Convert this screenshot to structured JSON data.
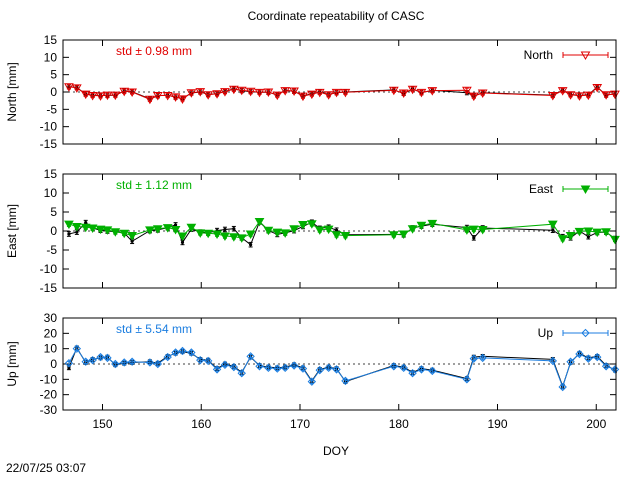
{
  "chart_data": {
    "type": "line",
    "title": "Coordinate repeatability of CASC",
    "xlabel": "DOY",
    "xlim": [
      146,
      202
    ],
    "xticks": [
      150,
      160,
      170,
      180,
      190,
      200
    ],
    "timestamp": "22/07/25 03:07",
    "grid": false,
    "panels": [
      {
        "name": "North",
        "ylabel": "North [mm]",
        "ylim": [
          -15,
          15
        ],
        "yticks": [
          15,
          10,
          5,
          0,
          -5,
          -10,
          -15
        ],
        "std_text": "std ± 0.98 mm",
        "legend": "North",
        "color": "#e00000",
        "marker": "triangle-down-open",
        "series": [
          {
            "x": [
              146.6,
              147.4,
              148.3,
              149.0,
              149.8,
              150.5,
              151.3,
              152.2,
              153.0,
              154.8,
              155.6,
              156.6,
              157.4,
              158.1,
              159.0,
              159.9,
              160.7,
              161.6,
              162.4,
              163.3,
              164.1,
              165.0,
              165.9,
              166.8,
              167.7,
              168.5,
              169.4,
              170.3,
              171.2,
              172.0,
              172.9,
              173.7,
              174.6,
              179.5,
              180.5,
              181.4,
              182.3,
              183.4,
              186.9,
              187.6,
              188.5,
              195.6,
              196.6,
              197.4,
              198.3,
              199.2,
              200.1,
              201.0,
              201.9
            ],
            "y": [
              1.5,
              1.2,
              -0.6,
              -1.0,
              -1.1,
              -0.9,
              -0.9,
              0.2,
              0.0,
              -2.1,
              -1.0,
              -1.0,
              -1.4,
              -2.0,
              -0.2,
              0.1,
              -0.8,
              -0.5,
              0.1,
              0.8,
              0.5,
              0.2,
              -0.1,
              0.0,
              -0.9,
              0.4,
              0.3,
              -1.2,
              -0.6,
              -0.1,
              -0.8,
              -0.1,
              -0.1,
              0.5,
              -0.3,
              0.8,
              -0.1,
              0.4,
              0.5,
              -1.2,
              -0.3,
              -1.0,
              0.4,
              -0.8,
              -1.1,
              -0.9,
              1.3,
              -0.8,
              -0.6
            ]
          },
          {
            "x": [
              146.6,
              147.4,
              148.3,
              149.0,
              149.8,
              150.5,
              151.3,
              152.2,
              153.0,
              154.8,
              155.6,
              156.6,
              157.4,
              158.1,
              159.0,
              159.9,
              160.7,
              161.6,
              162.4,
              163.3,
              164.1,
              165.0,
              165.9,
              166.8,
              167.7,
              168.5,
              169.4,
              170.3,
              171.2,
              172.0,
              172.9,
              173.7,
              174.6,
              179.5,
              180.5,
              181.4,
              182.3,
              183.4,
              186.9,
              187.6,
              188.5,
              195.6,
              196.6,
              197.4,
              198.3,
              199.2,
              200.1,
              201.0,
              201.9
            ],
            "y": [
              1.5,
              1.3,
              -0.6,
              -0.9,
              -1.0,
              -1.0,
              -0.9,
              0.3,
              0.1,
              -2.0,
              -1.1,
              -0.9,
              -1.5,
              -1.9,
              -0.3,
              0.0,
              -0.7,
              -0.5,
              0.2,
              0.9,
              0.4,
              0.1,
              -0.1,
              -0.1,
              -0.8,
              0.5,
              0.2,
              -1.1,
              -0.5,
              0.0,
              -0.7,
              -0.2,
              0.0,
              0.6,
              -0.4,
              0.9,
              -0.2,
              0.5,
              -0.2,
              -1.1,
              -0.2,
              -0.9,
              0.5,
              -0.7,
              -1.0,
              -0.8,
              1.4,
              -0.9,
              -0.5
            ]
          }
        ]
      },
      {
        "name": "East",
        "ylabel": "East [mm]",
        "ylim": [
          -15,
          15
        ],
        "yticks": [
          15,
          10,
          5,
          0,
          -5,
          -10,
          -15
        ],
        "std_text": "std ± 1.12 mm",
        "legend": "East",
        "color": "#00b000",
        "marker": "triangle-down-filled",
        "series": [
          {
            "x": [
              146.6,
              147.4,
              148.3,
              149.0,
              149.8,
              150.5,
              151.3,
              152.2,
              153.0,
              154.8,
              155.6,
              156.6,
              157.4,
              158.1,
              159.0,
              159.9,
              160.7,
              161.6,
              162.4,
              163.3,
              164.1,
              165.0,
              165.9,
              166.8,
              167.7,
              168.5,
              169.4,
              170.3,
              171.2,
              172.0,
              172.9,
              173.7,
              174.6,
              179.5,
              180.5,
              181.4,
              182.3,
              183.4,
              186.9,
              187.6,
              188.5,
              195.6,
              196.6,
              197.4,
              198.3,
              199.2,
              200.1,
              201.0,
              201.9
            ],
            "y": [
              1.8,
              1.2,
              1.0,
              0.8,
              0.5,
              0.3,
              -0.2,
              -0.6,
              -1.2,
              0.3,
              0.6,
              0.9,
              0.4,
              -1.3,
              1.0,
              -0.5,
              -0.6,
              -0.8,
              -1.3,
              -1.5,
              -1.8,
              -0.8,
              2.5,
              0.2,
              -0.3,
              -0.5,
              0.6,
              1.7,
              1.9,
              0.3,
              0.5,
              -1.0,
              -1.2,
              -1.0,
              -0.8,
              0.6,
              1.5,
              2.0,
              0.3,
              0.5,
              0.4,
              1.8,
              -2.0,
              -1.2,
              -0.1,
              0.0,
              -0.3,
              -0.2,
              -2.2
            ]
          },
          {
            "x": [
              146.6,
              147.4,
              148.3,
              149.0,
              149.8,
              150.5,
              151.3,
              152.2,
              153.0,
              154.8,
              155.6,
              156.6,
              157.4,
              158.1,
              159.0,
              159.9,
              160.7,
              161.6,
              162.4,
              163.3,
              164.1,
              165.0,
              165.9,
              166.8,
              167.7,
              168.5,
              169.4,
              170.3,
              171.2,
              172.0,
              172.9,
              173.7,
              174.6,
              179.5,
              180.5,
              181.4,
              182.3,
              183.4,
              186.9,
              187.6,
              188.5,
              195.6,
              196.6,
              197.4,
              198.3,
              199.2,
              200.1,
              201.0,
              201.9
            ],
            "y": [
              -0.8,
              -0.3,
              2.2,
              0.8,
              0.2,
              0.0,
              -0.2,
              -0.5,
              -2.7,
              0.1,
              0.3,
              0.9,
              1.6,
              -3.0,
              0.5,
              -0.3,
              -0.5,
              0.1,
              0.4,
              0.6,
              -1.8,
              -3.6,
              2.4,
              0.1,
              -0.9,
              -0.5,
              0.1,
              1.2,
              2.3,
              0.7,
              1.0,
              0.2,
              -1.0,
              -0.9,
              -1.0,
              0.8,
              1.3,
              1.8,
              0.9,
              -1.8,
              0.8,
              0.2,
              -1.5,
              -1.8,
              0.0,
              -1.5,
              -0.4,
              -0.3,
              -2.0
            ]
          }
        ]
      },
      {
        "name": "Up",
        "ylabel": "Up [mm]",
        "ylim": [
          -30,
          30
        ],
        "yticks": [
          30,
          20,
          10,
          0,
          -10,
          -20,
          -30
        ],
        "std_text": "std ± 5.54 mm",
        "legend": "Up",
        "color": "#1c7ee0",
        "marker": "diamond-open",
        "series": [
          {
            "x": [
              146.6,
              147.4,
              148.3,
              149.0,
              149.8,
              150.5,
              151.3,
              152.2,
              153.0,
              154.8,
              155.6,
              156.6,
              157.4,
              158.1,
              159.0,
              159.9,
              160.7,
              161.6,
              162.4,
              163.3,
              164.1,
              165.0,
              165.9,
              166.8,
              167.7,
              168.5,
              169.4,
              170.3,
              171.2,
              172.0,
              172.9,
              173.7,
              174.6,
              179.5,
              180.5,
              181.4,
              182.3,
              183.4,
              186.9,
              187.6,
              188.5,
              195.6,
              196.6,
              197.4,
              198.3,
              199.2,
              200.1,
              201.0,
              201.9
            ],
            "y": [
              0.5,
              10.0,
              1.5,
              2.5,
              4.5,
              4.0,
              0.0,
              1.0,
              1.5,
              1.0,
              0.0,
              4.5,
              7.5,
              8.5,
              7.5,
              2.5,
              2.0,
              -3.5,
              -0.5,
              -2.0,
              -6.0,
              5.0,
              -1.5,
              -2.5,
              -3.0,
              -2.5,
              -1.0,
              -3.0,
              -11.5,
              -4.0,
              -2.5,
              -3.5,
              -11.0,
              -1.5,
              -2.5,
              -6.0,
              -3.5,
              -4.5,
              -10.0,
              3.5,
              4.0,
              2.0,
              -15.0,
              1.5,
              6.5,
              3.5,
              4.5,
              -1.5,
              -3.5
            ]
          },
          {
            "x": [
              146.6,
              147.4,
              148.3,
              149.0,
              149.8,
              150.5,
              151.3,
              152.2,
              153.0,
              154.8,
              155.6,
              156.6,
              157.4,
              158.1,
              159.0,
              159.9,
              160.7,
              161.6,
              162.4,
              163.3,
              164.1,
              165.0,
              165.9,
              166.8,
              167.7,
              168.5,
              169.4,
              170.3,
              171.2,
              172.0,
              172.9,
              173.7,
              174.6,
              179.5,
              180.5,
              181.4,
              182.3,
              183.4,
              186.9,
              187.6,
              188.5,
              195.6,
              196.6,
              197.4,
              198.3,
              199.2,
              200.1,
              201.0,
              201.9
            ],
            "y": [
              -2.5,
              10.5,
              1.0,
              3.0,
              4.0,
              4.5,
              -0.5,
              0.5,
              1.0,
              1.5,
              0.5,
              5.0,
              7.0,
              8.0,
              7.0,
              3.0,
              2.5,
              -3.0,
              0.0,
              -1.5,
              -5.5,
              4.5,
              -1.0,
              -2.0,
              -2.5,
              -2.0,
              -0.5,
              -2.5,
              -11.0,
              -3.5,
              -2.0,
              -3.0,
              -11.5,
              -1.0,
              -2.0,
              -5.5,
              -3.0,
              -4.0,
              -9.5,
              4.5,
              5.0,
              3.0,
              -14.5,
              1.0,
              7.0,
              4.0,
              5.0,
              -1.0,
              -4.0
            ]
          }
        ]
      }
    ]
  }
}
